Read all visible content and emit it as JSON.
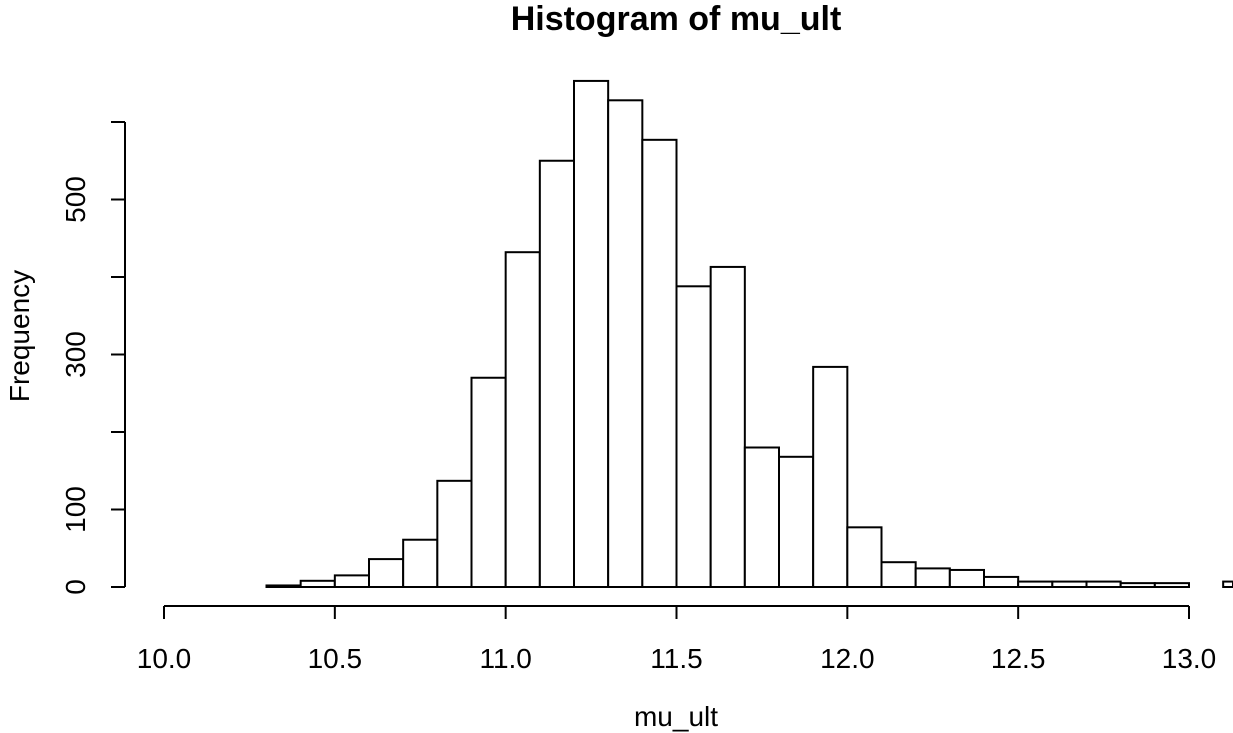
{
  "chart_data": {
    "type": "bar",
    "title": "Histogram of mu_ult",
    "xlabel": "mu_ult",
    "ylabel": "Frequency",
    "bin_width": 0.1,
    "bin_starts": [
      10.3,
      10.4,
      10.5,
      10.6,
      10.7,
      10.8,
      10.9,
      11.0,
      11.1,
      11.2,
      11.3,
      11.4,
      11.5,
      11.6,
      11.7,
      11.8,
      11.9,
      12.0,
      12.1,
      12.2,
      12.3,
      12.4,
      12.5,
      12.6,
      12.7,
      12.8,
      12.9,
      13.1
    ],
    "values": [
      2,
      8,
      15,
      36,
      61,
      137,
      270,
      432,
      550,
      653,
      628,
      577,
      388,
      413,
      180,
      168,
      284,
      77,
      32,
      24,
      22,
      13,
      7,
      7,
      7,
      5,
      5,
      7
    ],
    "xlim": [
      10.0,
      13.0
    ],
    "ylim": [
      0,
      600
    ],
    "x_ticks": [
      "10.0",
      "10.5",
      "11.0",
      "11.5",
      "12.0",
      "12.5",
      "13.0"
    ],
    "y_ticks": [
      "0",
      "100",
      "300",
      "500"
    ],
    "grid": false,
    "legend": "none"
  }
}
